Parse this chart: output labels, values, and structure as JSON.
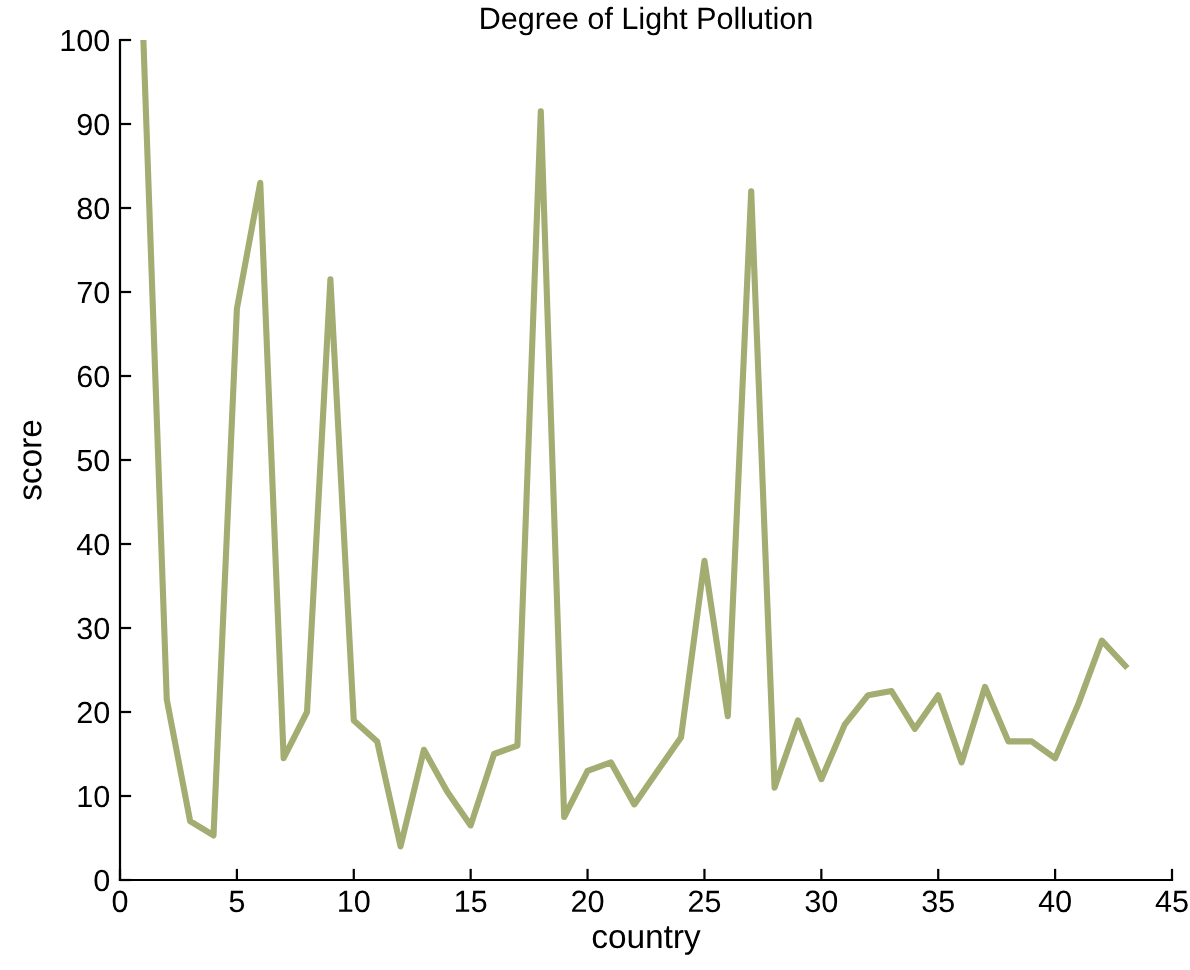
{
  "chart_data": {
    "type": "line",
    "title": "Degree of Light Pollution",
    "xlabel": "country",
    "ylabel": "score",
    "x": [
      1,
      2,
      3,
      4,
      5,
      6,
      7,
      8,
      9,
      10,
      11,
      12,
      13,
      14,
      15,
      16,
      17,
      18,
      19,
      20,
      21,
      22,
      23,
      24,
      25,
      26,
      27,
      28,
      29,
      30,
      31,
      32,
      33,
      34,
      35,
      36,
      37,
      38,
      39,
      40,
      41,
      42,
      43
    ],
    "series": [
      {
        "color": "#a3ad72",
        "values": [
          100,
          21.5,
          7,
          5.3,
          68,
          83,
          14.5,
          20,
          71.5,
          19,
          16.5,
          4,
          15.5,
          10.5,
          6.5,
          15,
          16,
          91.5,
          7.5,
          13,
          14,
          9,
          13,
          17,
          38,
          19.5,
          82,
          11,
          19,
          12,
          18.5,
          22,
          22.5,
          18,
          22,
          14,
          23,
          16.5,
          16.5,
          14.5,
          21,
          28.5,
          25.5
        ]
      }
    ],
    "xlim": [
      0,
      45
    ],
    "xticks": [
      0,
      5,
      10,
      15,
      20,
      25,
      30,
      35,
      40,
      45
    ],
    "ylim": [
      0,
      100
    ],
    "yticks": [
      0,
      10,
      20,
      30,
      40,
      50,
      60,
      70,
      80,
      90,
      100
    ],
    "grid": false,
    "marker": "none",
    "line_style": "solid"
  }
}
